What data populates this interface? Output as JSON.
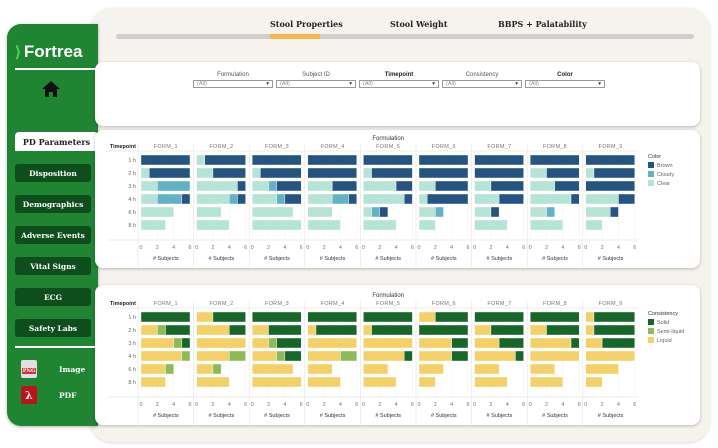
{
  "sidebar": {
    "logo": "Fortrea",
    "active_tab": "PD Parameters",
    "items": [
      {
        "label": "Disposition"
      },
      {
        "label": "Demographics"
      },
      {
        "label": "Adverse Events"
      },
      {
        "label": "Vital Signs"
      },
      {
        "label": "ECG"
      },
      {
        "label": "Safety Labs"
      }
    ],
    "export": [
      {
        "label": "Image",
        "icon": "png-file-icon"
      },
      {
        "label": "PDF",
        "icon": "pdf-file-icon"
      }
    ]
  },
  "tabs": [
    {
      "label": "Stool Properties",
      "active": true
    },
    {
      "label": "Stool Weight"
    },
    {
      "label": "BBPS + Palatability"
    }
  ],
  "filters": [
    {
      "label": "Formulation",
      "value": "(All)"
    },
    {
      "label": "Subject ID",
      "value": "(All)"
    },
    {
      "label": "Timepoint",
      "value": "(All)"
    },
    {
      "label": "Consistency",
      "value": "(All)"
    },
    {
      "label": "Color",
      "value": "(All)"
    }
  ],
  "chart_data": [
    {
      "type": "bar",
      "orientation": "horizontal",
      "stacked": true,
      "facet_title": "Formulation",
      "row_title": "Timepoint",
      "xlabel": "# Subjects",
      "xlim": [
        0,
        6.5
      ],
      "xticks": [
        0,
        2,
        4,
        6
      ],
      "facets": [
        "FORM_1",
        "FORM_2",
        "FORM_3",
        "FORM_4",
        "FORM_5",
        "FORM_6",
        "FORM_7",
        "FORM_8",
        "FORM_9"
      ],
      "categories": [
        "1 h",
        "2 h",
        "3 h",
        "4 h",
        "6 h",
        "8 h"
      ],
      "legend": {
        "title": "Color",
        "position": "right"
      },
      "series": [
        {
          "name": "Clear",
          "color": "#b5e3d6",
          "values": [
            [
              0,
              1,
              2,
              2,
              4,
              3
            ],
            [
              1,
              2,
              5,
              4,
              3,
              4
            ],
            [
              0,
              1,
              2,
              3,
              5,
              6
            ],
            [
              0,
              0,
              3,
              3,
              3,
              4
            ],
            [
              0,
              1,
              4,
              5,
              1,
              4
            ],
            [
              0,
              0,
              2,
              1,
              2,
              2
            ],
            [
              0,
              0,
              2,
              3,
              2,
              4
            ],
            [
              0,
              2,
              3,
              5,
              2,
              4
            ],
            [
              0,
              1,
              0,
              4,
              3,
              2
            ]
          ]
        },
        {
          "name": "Cloudy",
          "color": "#62b2c4",
          "values": [
            [
              0,
              0,
              4,
              3,
              0,
              0
            ],
            [
              0,
              0,
              0,
              1,
              0,
              0
            ],
            [
              0,
              0,
              1,
              1,
              0,
              0
            ],
            [
              0,
              0,
              0,
              2,
              0,
              0
            ],
            [
              0,
              0,
              0,
              0,
              1,
              0
            ],
            [
              0,
              0,
              0,
              0,
              1,
              0
            ],
            [
              0,
              0,
              0,
              0,
              0,
              0
            ],
            [
              0,
              0,
              0,
              0,
              1,
              0
            ],
            [
              0,
              0,
              0,
              0,
              0,
              0
            ]
          ]
        },
        {
          "name": "Brown",
          "color": "#265482",
          "values": [
            [
              6,
              5,
              0,
              1,
              0,
              0
            ],
            [
              5,
              4,
              1,
              1,
              0,
              0
            ],
            [
              6,
              5,
              3,
              2,
              0,
              0
            ],
            [
              6,
              6,
              3,
              1,
              0,
              0
            ],
            [
              6,
              5,
              2,
              1,
              1,
              0
            ],
            [
              6,
              6,
              4,
              5,
              0,
              0
            ],
            [
              6,
              6,
              4,
              3,
              1,
              0
            ],
            [
              6,
              4,
              3,
              1,
              0,
              0
            ],
            [
              6,
              5,
              6,
              2,
              1,
              0
            ]
          ]
        }
      ],
      "legend_order": [
        "Brown",
        "Cloudy",
        "Clear"
      ]
    },
    {
      "type": "bar",
      "orientation": "horizontal",
      "stacked": true,
      "facet_title": "Formulation",
      "row_title": "Timepoint",
      "xlabel": "# Subjects",
      "xlim": [
        0,
        6.5
      ],
      "xticks": [
        0,
        2,
        4,
        6
      ],
      "facets": [
        "FORM_1",
        "FORM_2",
        "FORM_3",
        "FORM_4",
        "FORM_5",
        "FORM_6",
        "FORM_7",
        "FORM_8",
        "FORM_9"
      ],
      "categories": [
        "1 h",
        "2 h",
        "3 h",
        "4 h",
        "6 h",
        "8 h"
      ],
      "legend": {
        "title": "Consistency",
        "position": "right"
      },
      "series": [
        {
          "name": "Liquid",
          "color": "#f4d168",
          "values": [
            [
              0,
              2,
              4,
              5,
              3,
              3
            ],
            [
              2,
              4,
              6,
              4,
              2,
              4
            ],
            [
              0,
              2,
              2,
              3,
              5,
              6
            ],
            [
              0,
              1,
              6,
              4,
              3,
              4
            ],
            [
              0,
              1,
              6,
              5,
              3,
              4
            ],
            [
              2,
              0,
              4,
              4,
              3,
              2
            ],
            [
              0,
              2,
              3,
              5,
              3,
              4
            ],
            [
              0,
              2,
              5,
              6,
              3,
              4
            ],
            [
              1,
              1,
              2,
              6,
              4,
              2
            ]
          ]
        },
        {
          "name": "Semi-liquid",
          "color": "#8cba55",
          "values": [
            [
              0,
              1,
              1,
              1,
              1,
              0
            ],
            [
              0,
              0,
              0,
              2,
              1,
              0
            ],
            [
              0,
              0,
              1,
              1,
              0,
              0
            ],
            [
              0,
              0,
              0,
              2,
              0,
              0
            ],
            [
              0,
              0,
              0,
              0,
              0,
              0
            ],
            [
              0,
              0,
              0,
              0,
              0,
              0
            ],
            [
              0,
              0,
              0,
              0,
              0,
              0
            ],
            [
              0,
              0,
              0,
              0,
              0,
              0
            ],
            [
              0,
              0,
              0,
              0,
              0,
              0
            ]
          ]
        },
        {
          "name": "Solid",
          "color": "#17672b",
          "values": [
            [
              6,
              3,
              1,
              0,
              0,
              0
            ],
            [
              4,
              2,
              0,
              0,
              0,
              0
            ],
            [
              6,
              4,
              3,
              2,
              0,
              0
            ],
            [
              6,
              5,
              0,
              0,
              0,
              0
            ],
            [
              6,
              5,
              0,
              1,
              0,
              0
            ],
            [
              4,
              6,
              2,
              2,
              0,
              0
            ],
            [
              6,
              4,
              3,
              1,
              0,
              0
            ],
            [
              6,
              4,
              1,
              0,
              0,
              0
            ],
            [
              5,
              5,
              4,
              0,
              0,
              0
            ]
          ]
        }
      ],
      "legend_order": [
        "Solid",
        "Semi-liquid",
        "Liquid"
      ]
    }
  ]
}
